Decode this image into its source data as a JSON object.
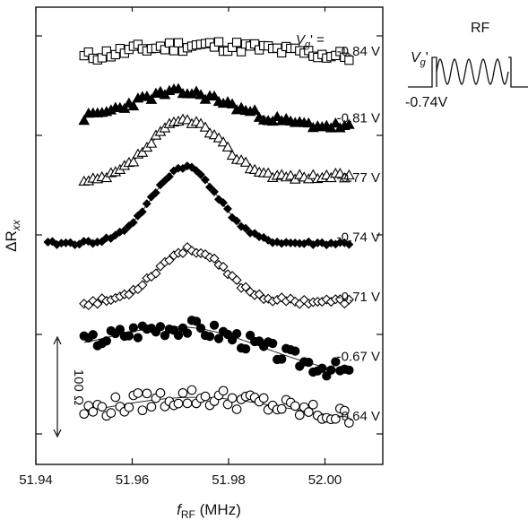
{
  "chart_data": {
    "type": "scatter",
    "xlabel_main": "f",
    "xlabel_sub": "RF",
    "xlabel_unit": " (MHz)",
    "ylabel_main": "ΔR",
    "ylabel_sub": "xx",
    "xlim": [
      51.94,
      52.012
    ],
    "x_ticks": [
      "51.94",
      "51.96",
      "51.98",
      "52.00"
    ],
    "x_tick_values": [
      51.94,
      51.96,
      51.98,
      52.0
    ],
    "y_tick_count": 5,
    "scale_bar_label": "100 Ω",
    "scale_bar_ohms": 100,
    "header_symbol": "V",
    "header_sub": "g",
    "header_prime_eq": "' =",
    "series": [
      {
        "name": "-0.84 V",
        "marker": "square-open",
        "offset": 0,
        "amp": 21,
        "center": 51.972,
        "width": 0.02,
        "base": [
          -4,
          3
        ],
        "seed": 11,
        "noise": 6
      },
      {
        "name": "-0.81 V",
        "marker": "triangle-filled",
        "offset": 1,
        "amp": 34,
        "center": 51.97,
        "width": 0.011,
        "base": [
          0,
          -3
        ],
        "seed": 23,
        "noise": 4
      },
      {
        "name": "-0.77 V",
        "marker": "triangle-open",
        "offset": 2,
        "amp": 63,
        "center": 51.971,
        "width": 0.0075,
        "base": [
          0,
          8
        ],
        "seed": 37,
        "noise": 3
      },
      {
        "name": "-0.74 V",
        "marker": "diamond-filled",
        "offset": 3,
        "amp": 80,
        "center": 51.971,
        "width": 0.0068,
        "base": [
          0,
          0
        ],
        "seed": 41,
        "noise": 2
      },
      {
        "name": "-0.71 V",
        "marker": "diamond-open",
        "offset": 4,
        "amp": 55,
        "center": 51.972,
        "width": 0.007,
        "base": [
          0,
          2
        ],
        "seed": 53,
        "noise": 3
      },
      {
        "name": "-0.67 V",
        "marker": "circle-filled",
        "offset": 5,
        "amp": 40,
        "center": 51.971,
        "width": 0.016,
        "base": [
          4,
          -14
        ],
        "seed": 67,
        "noise": 9
      },
      {
        "name": "-0.64 V",
        "marker": "circle-open",
        "offset": 6,
        "amp": 26,
        "center": 51.973,
        "width": 0.018,
        "base": [
          0,
          0
        ],
        "seed": 79,
        "noise": 10
      }
    ]
  },
  "inset": {
    "gate_label": "V",
    "gate_sub": "g",
    "gate_prime": "'",
    "rf_label": "RF",
    "base_voltage": "-0.74V"
  }
}
